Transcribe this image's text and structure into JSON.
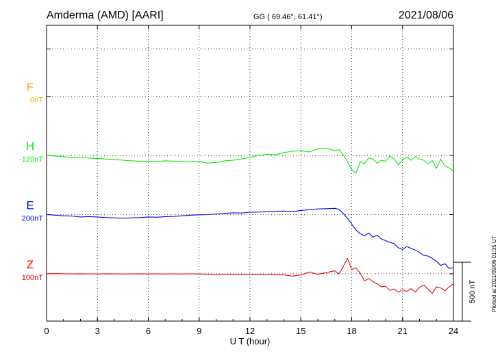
{
  "header": {
    "station": "Amderma (AMD)  [AARI]",
    "coords": "GG ( 69.46°,  61.41°)",
    "date": "2021/08/06"
  },
  "plotted_note": "Plotted at 2021/09/06 01:35 UT",
  "scale_label": "500 nT",
  "chart_data": {
    "type": "line",
    "title": "Amderma (AMD)  [AARI]",
    "xlabel": "U T (hour)",
    "ylabel": "",
    "xlim": [
      0,
      24
    ],
    "x_ticks": [
      "0",
      "3",
      "6",
      "9",
      "12",
      "15",
      "18",
      "21",
      "24"
    ],
    "grid": true,
    "scale_bar_nT": 500,
    "band_spacing_nT": 500,
    "y_bottom_offset_nT": -400,
    "y_top_offset_nT": 2100,
    "series": [
      {
        "name": "F",
        "baseline_label": "0nT",
        "color": "#ffaa00",
        "offset_nT": 1500,
        "x": [],
        "values": []
      },
      {
        "name": "H",
        "baseline_label": "-120nT",
        "color": "#00ee00",
        "offset_nT": 1000,
        "x": [
          0,
          0.5,
          1,
          1.5,
          2,
          2.5,
          3,
          3.5,
          4,
          4.5,
          5,
          5.5,
          6,
          6.5,
          7,
          7.5,
          8,
          8.5,
          9,
          9.5,
          10,
          10.5,
          11,
          11.5,
          12,
          12.5,
          13,
          13.5,
          14,
          14.5,
          15,
          15.5,
          16,
          16.5,
          17,
          17.25,
          17.5,
          17.75,
          18,
          18.25,
          18.5,
          18.75,
          19,
          19.25,
          19.5,
          19.75,
          20,
          20.25,
          20.5,
          20.75,
          21,
          21.25,
          21.5,
          21.75,
          22,
          22.25,
          22.5,
          22.75,
          23,
          23.25,
          23.5,
          23.75,
          24
        ],
        "values": [
          -120,
          -125,
          -130,
          -138,
          -135,
          -142,
          -145,
          -150,
          -155,
          -160,
          -165,
          -168,
          -170,
          -172,
          -165,
          -168,
          -170,
          -175,
          -170,
          -185,
          -180,
          -165,
          -160,
          -150,
          -135,
          -120,
          -110,
          -115,
          -95,
          -85,
          -80,
          -90,
          -65,
          -60,
          -80,
          -70,
          -115,
          -170,
          -240,
          -270,
          -175,
          -190,
          -140,
          -150,
          -185,
          -160,
          -170,
          -125,
          -150,
          -200,
          -155,
          -135,
          -160,
          -130,
          -150,
          -160,
          -190,
          -165,
          -230,
          -150,
          -210,
          -225,
          -250
        ]
      },
      {
        "name": "E",
        "baseline_label": "200nT",
        "color": "#0000ee",
        "offset_nT": 500,
        "x": [
          0,
          0.5,
          1,
          1.5,
          2,
          2.5,
          3,
          3.5,
          4,
          4.5,
          5,
          5.5,
          6,
          6.5,
          7,
          7.5,
          8,
          8.5,
          9,
          9.5,
          10,
          10.5,
          11,
          11.5,
          12,
          12.5,
          13,
          13.5,
          14,
          14.5,
          15,
          15.5,
          16,
          16.5,
          17,
          17.25,
          17.5,
          17.75,
          18,
          18.25,
          18.5,
          18.75,
          19,
          19.25,
          19.5,
          19.75,
          20,
          20.25,
          20.5,
          20.75,
          21,
          21.25,
          21.5,
          21.75,
          22,
          22.25,
          22.5,
          22.75,
          23,
          23.25,
          23.5,
          23.75,
          24
        ],
        "values": [
          200,
          195,
          190,
          188,
          180,
          183,
          180,
          175,
          172,
          170,
          172,
          175,
          180,
          178,
          183,
          185,
          190,
          195,
          198,
          200,
          205,
          210,
          215,
          213,
          220,
          222,
          225,
          228,
          230,
          225,
          235,
          242,
          248,
          250,
          253,
          245,
          210,
          170,
          120,
          70,
          40,
          20,
          45,
          10,
          25,
          -5,
          -20,
          -35,
          -45,
          -80,
          -95,
          -70,
          -85,
          -100,
          -120,
          -145,
          -150,
          -170,
          -195,
          -230,
          -215,
          -255,
          -250
        ]
      },
      {
        "name": "Z",
        "baseline_label": "100nT",
        "color": "#ee0000",
        "offset_nT": 0,
        "x": [
          0,
          0.5,
          1,
          1.5,
          2,
          2.5,
          3,
          3.5,
          4,
          4.5,
          5,
          5.5,
          6,
          6.5,
          7,
          7.5,
          8,
          8.5,
          9,
          9.5,
          10,
          10.5,
          11,
          11.5,
          12,
          12.5,
          13,
          13.5,
          14,
          14.5,
          15,
          15.5,
          16,
          16.5,
          17,
          17.25,
          17.5,
          17.75,
          18,
          18.25,
          18.5,
          18.75,
          19,
          19.25,
          19.5,
          19.75,
          20,
          20.25,
          20.5,
          20.75,
          21,
          21.25,
          21.5,
          21.75,
          22,
          22.25,
          22.5,
          22.75,
          23,
          23.25,
          23.5,
          23.75,
          24
        ],
        "values": [
          100,
          101,
          100,
          99,
          100,
          99,
          98,
          100,
          99,
          98,
          99,
          100,
          98,
          99,
          98,
          99,
          98,
          99,
          98,
          97,
          96,
          95,
          97,
          94,
          92,
          94,
          93,
          91,
          90,
          80,
          90,
          115,
          95,
          110,
          125,
          100,
          160,
          230,
          135,
          150,
          105,
          40,
          60,
          35,
          15,
          -10,
          -5,
          -40,
          -30,
          -55,
          -35,
          -50,
          -25,
          -55,
          -15,
          5,
          -30,
          -65,
          -10,
          -20,
          -45,
          -10,
          15
        ]
      }
    ]
  }
}
